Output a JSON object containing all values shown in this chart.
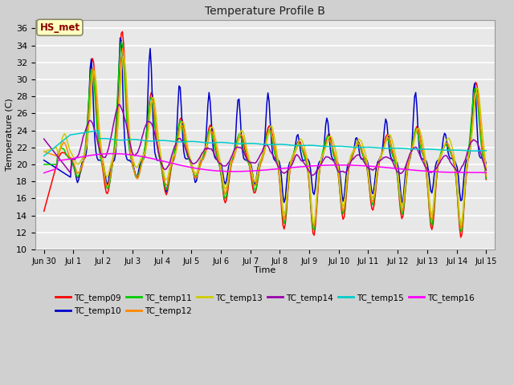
{
  "title": "Temperature Profile B",
  "xlabel": "Time",
  "ylabel": "Temperature (C)",
  "ylim": [
    10,
    37
  ],
  "yticks": [
    10,
    12,
    14,
    16,
    18,
    20,
    22,
    24,
    26,
    28,
    30,
    32,
    34,
    36
  ],
  "annotation_text": "HS_met",
  "annotation_color": "#8B0000",
  "annotation_bg": "#FFFFC0",
  "series_colors": {
    "TC_temp09": "#FF0000",
    "TC_temp10": "#0000CC",
    "TC_temp11": "#00CC00",
    "TC_temp12": "#FF8800",
    "TC_temp13": "#CCCC00",
    "TC_temp14": "#9900AA",
    "TC_temp15": "#00CCCC",
    "TC_temp16": "#FF00FF"
  },
  "xtick_labels": [
    "Jun 30",
    "Jul 1",
    "Jul 2",
    "Jul 3",
    "Jul 4",
    "Jul 5",
    "Jul 6",
    "Jul 7",
    "Jul 8",
    "Jul 9",
    "Jul 10",
    "Jul 11",
    "Jul 12",
    "Jul 13",
    "Jul 14",
    "Jul 15"
  ],
  "fig_facecolor": "#D0D0D0",
  "ax_facecolor": "#E8E8E8",
  "grid_color": "#FFFFFF",
  "linewidth": 1.1
}
